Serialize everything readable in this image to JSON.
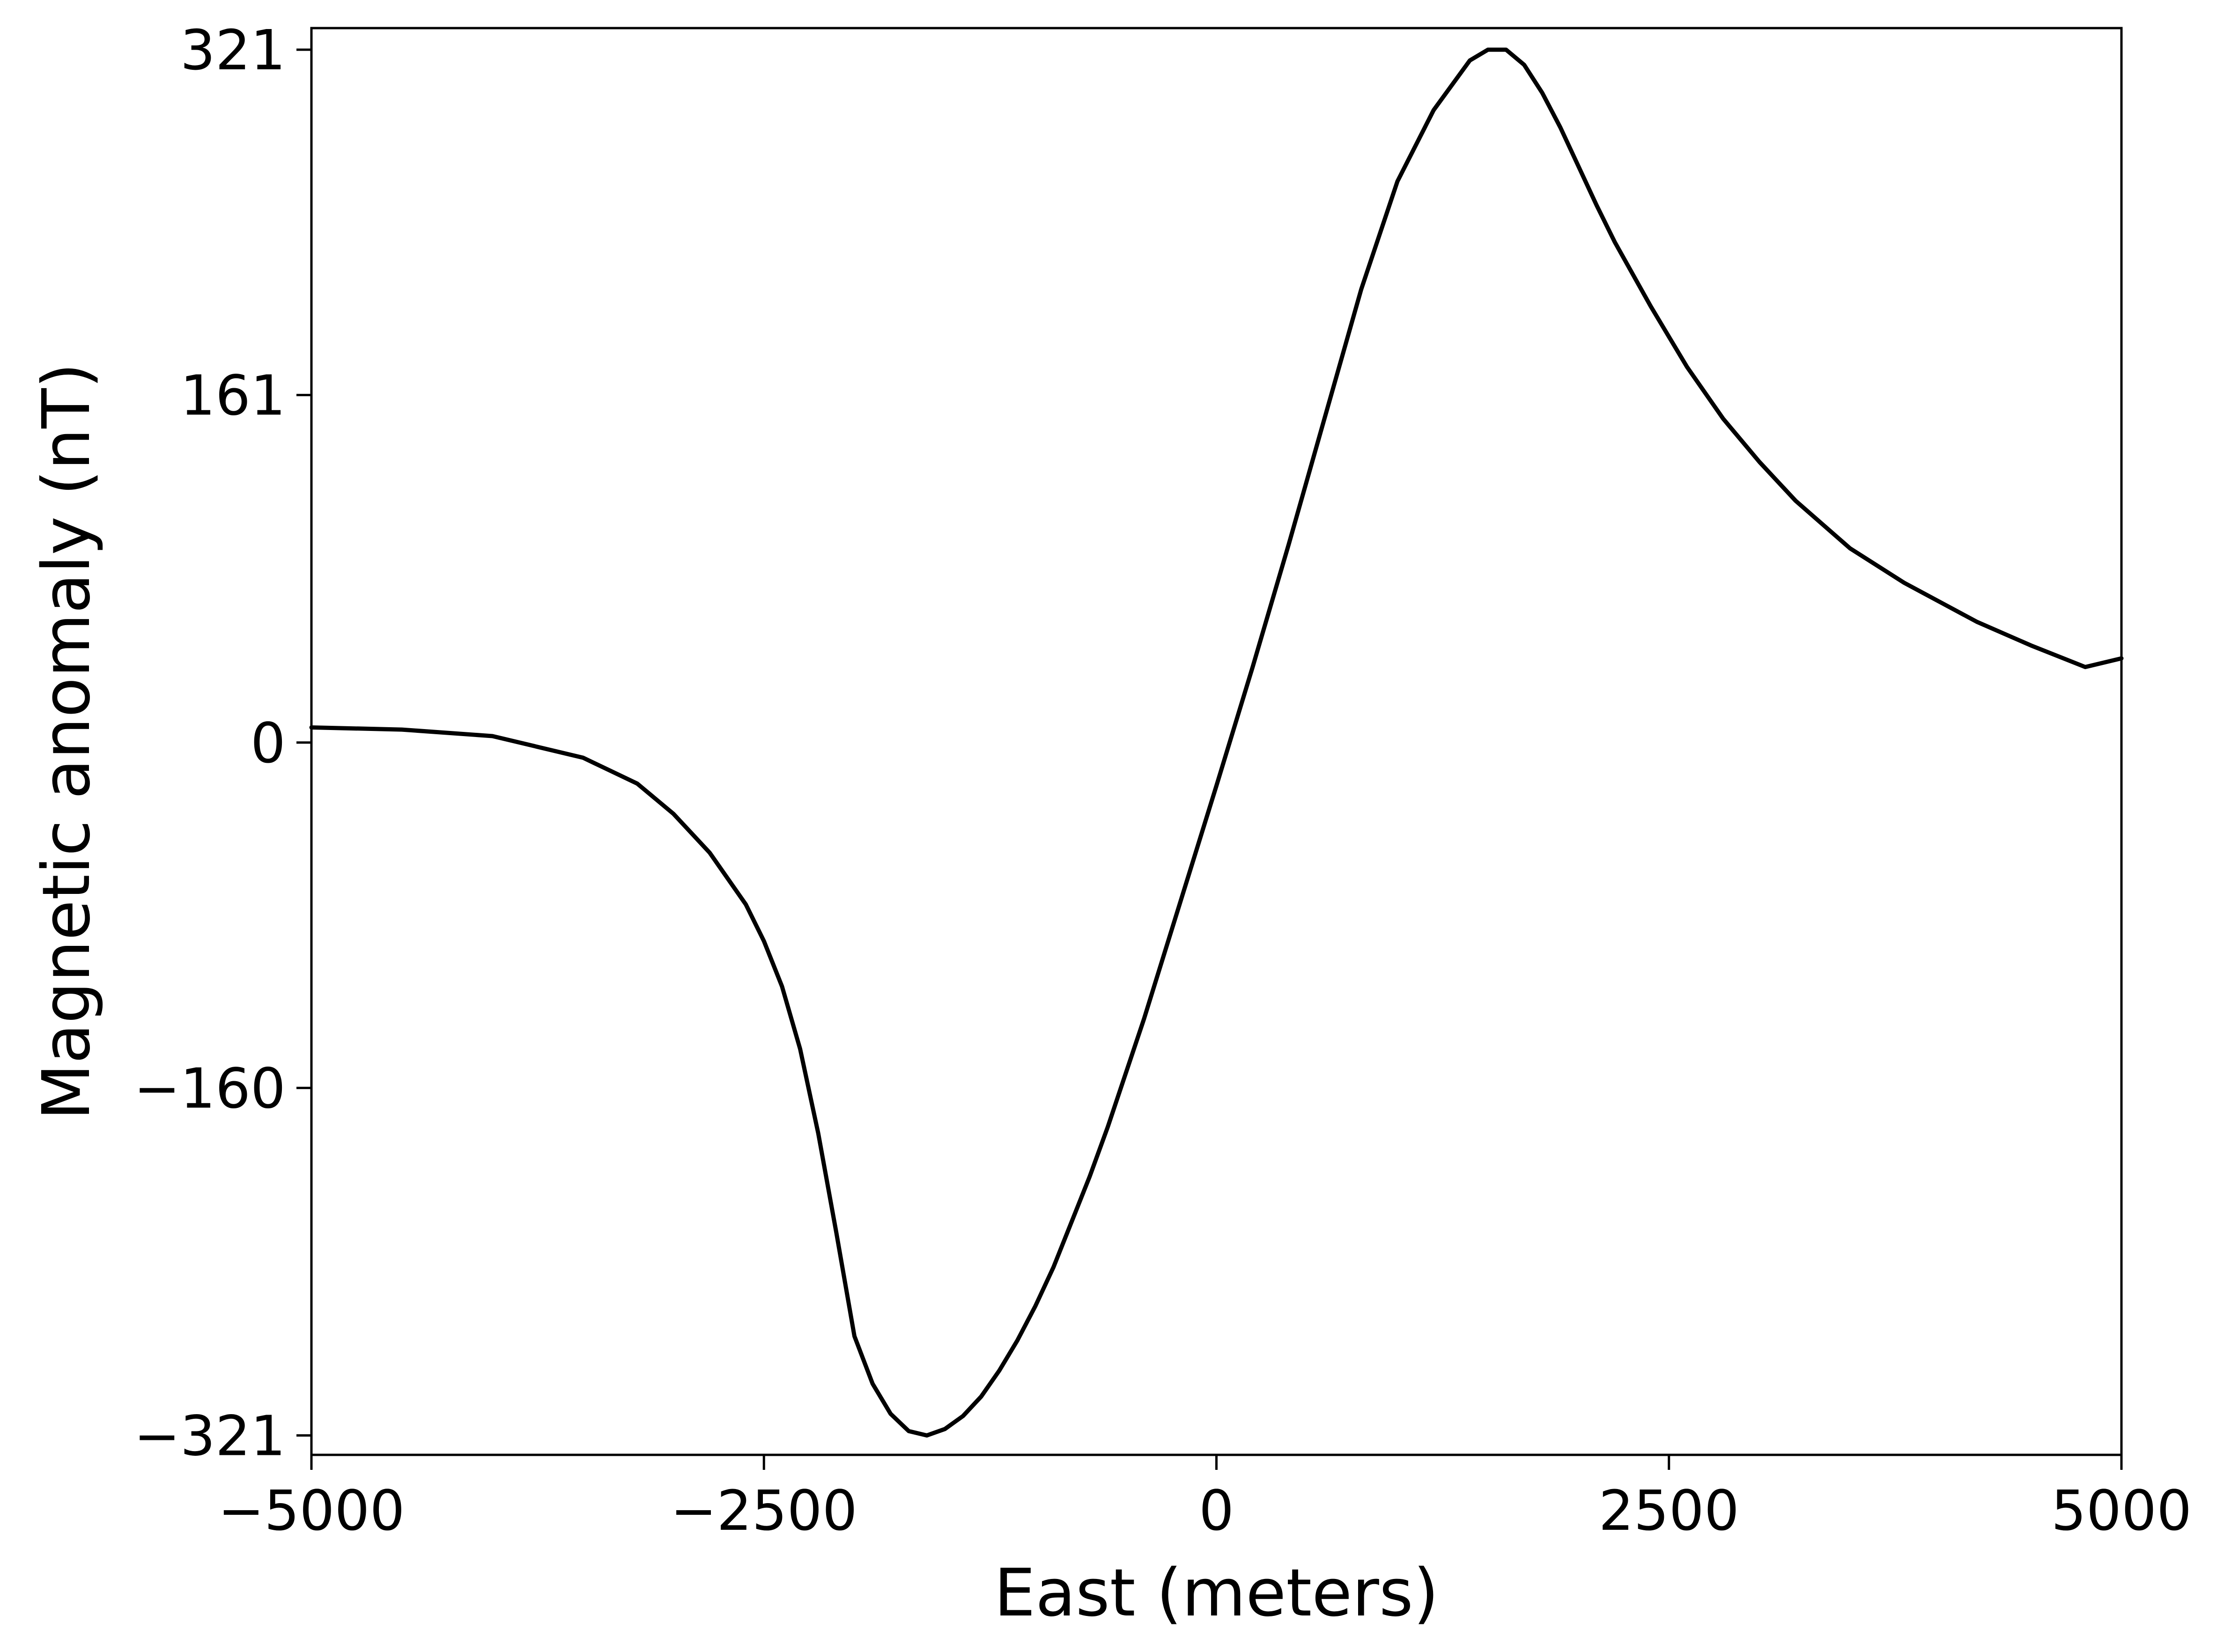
{
  "chart_data": {
    "type": "line",
    "title": "",
    "xlabel": "East (meters)",
    "ylabel": "Magnetic anomaly (nT)",
    "xlim": [
      -5000,
      5000
    ],
    "ylim": [
      -330,
      331
    ],
    "xticks": [
      -5000,
      -2500,
      0,
      2500,
      5000
    ],
    "xtick_labels": [
      "−5000",
      "−2500",
      "0",
      "2500",
      "5000"
    ],
    "yticks": [
      -321,
      -160,
      0,
      161,
      321
    ],
    "ytick_labels": [
      "−321",
      "−160",
      "0",
      "161",
      "321"
    ],
    "grid": false,
    "legend": false,
    "line_color": "#000000",
    "series": [
      {
        "x": [
          -5000,
          -4500,
          -4000,
          -3500,
          -3200,
          -3000,
          -2800,
          -2600,
          -2500,
          -2400,
          -2300,
          -2200,
          -2100,
          -2000,
          -1900,
          -1800,
          -1700,
          -1600,
          -1500,
          -1400,
          -1300,
          -1200,
          -1100,
          -1000,
          -900,
          -800,
          -700,
          -600,
          -400,
          -200,
          0,
          200,
          400,
          600,
          800,
          1000,
          1200,
          1400,
          1500,
          1600,
          1700,
          1800,
          1900,
          2000,
          2100,
          2200,
          2400,
          2600,
          2800,
          3000,
          3200,
          3500,
          3800,
          4000,
          4200,
          4500,
          4800,
          5000
        ],
        "y": [
          7,
          6,
          3,
          -7,
          -19,
          -33,
          -51,
          -75,
          -92,
          -113,
          -142,
          -181,
          -227,
          -275,
          -297,
          -311,
          -319,
          -321,
          -318,
          -312,
          -303,
          -291,
          -277,
          -261,
          -243,
          -222,
          -201,
          -178,
          -128,
          -74,
          -20,
          35,
          92,
          151,
          210,
          260,
          293,
          316,
          321,
          321,
          314,
          301,
          285,
          267,
          249,
          232,
          202,
          174,
          150,
          130,
          112,
          90,
          74,
          65,
          56,
          45,
          35,
          39
        ]
      }
    ]
  }
}
